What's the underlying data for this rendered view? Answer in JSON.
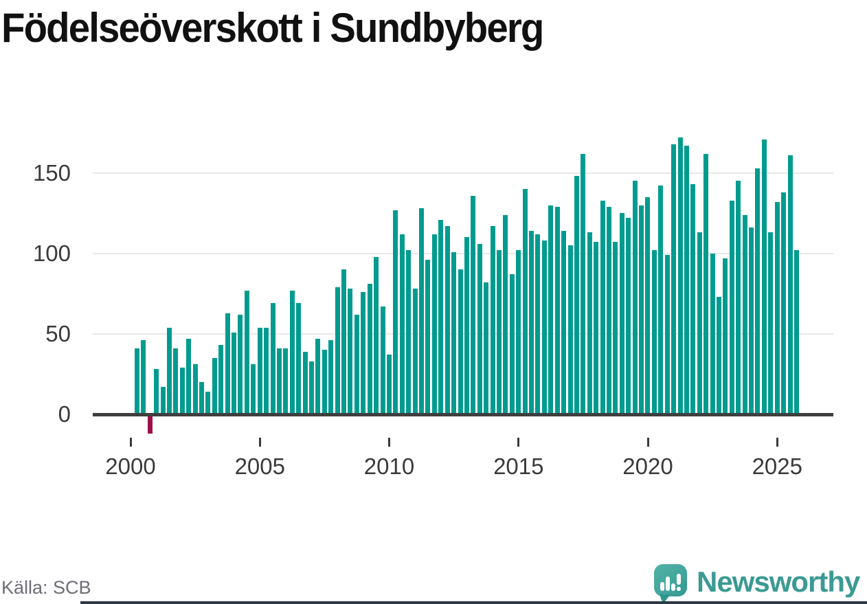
{
  "title": "Födelseöverskott i Sundbyberg",
  "source": "Källa: SCB",
  "branding": {
    "name": "Newsworthy",
    "logo_icon": "speech-bubble-bar-chart-icon",
    "wordmark_color": "#3b9a93",
    "bubble_color": "#43a79e"
  },
  "colors": {
    "positive_bar": "#009b8f",
    "negative_bar": "#9e104b",
    "axis_line": "#3f3f3f",
    "gridline": "#e8e8e8",
    "tick_label": "#3a3a3a",
    "source_text": "#6d6d75",
    "bottom_bar": "#2e3a48"
  },
  "chart_data": {
    "type": "bar",
    "title": "Födelseöverskott i Sundbyberg",
    "xlabel": "",
    "ylabel": "",
    "x_ticks": [
      "2000",
      "2005",
      "2010",
      "2015",
      "2020",
      "2025"
    ],
    "y_ticks": [
      0,
      50,
      100,
      150
    ],
    "ylim": [
      -15,
      176
    ],
    "grid": "horizontal",
    "legend": "none",
    "categories": [
      "2000Q2",
      "2000Q3",
      "2000Q4",
      "2001Q1",
      "2001Q2",
      "2001Q3",
      "2001Q4",
      "2002Q1",
      "2002Q2",
      "2002Q3",
      "2002Q4",
      "2003Q1",
      "2003Q2",
      "2003Q3",
      "2003Q4",
      "2004Q1",
      "2004Q2",
      "2004Q3",
      "2004Q4",
      "2005Q1",
      "2005Q2",
      "2005Q3",
      "2005Q4",
      "2006Q1",
      "2006Q2",
      "2006Q3",
      "2006Q4",
      "2007Q1",
      "2007Q2",
      "2007Q3",
      "2007Q4",
      "2008Q1",
      "2008Q2",
      "2008Q3",
      "2008Q4",
      "2009Q1",
      "2009Q2",
      "2009Q3",
      "2009Q4",
      "2010Q1",
      "2010Q2",
      "2010Q3",
      "2010Q4",
      "2011Q1",
      "2011Q2",
      "2011Q3",
      "2011Q4",
      "2012Q1",
      "2012Q2",
      "2012Q3",
      "2012Q4",
      "2013Q1",
      "2013Q2",
      "2013Q3",
      "2013Q4",
      "2014Q1",
      "2014Q2",
      "2014Q3",
      "2014Q4",
      "2015Q1",
      "2015Q2",
      "2015Q3",
      "2015Q4",
      "2016Q1",
      "2016Q2",
      "2016Q3",
      "2016Q4",
      "2017Q1",
      "2017Q2",
      "2017Q3",
      "2017Q4",
      "2018Q1",
      "2018Q2",
      "2018Q3",
      "2018Q4",
      "2019Q1",
      "2019Q2",
      "2019Q3",
      "2019Q4",
      "2020Q1",
      "2020Q2",
      "2020Q3",
      "2020Q4",
      "2021Q1",
      "2021Q2",
      "2021Q3",
      "2021Q4",
      "2022Q1",
      "2022Q2",
      "2022Q3",
      "2022Q4",
      "2023Q1",
      "2023Q2",
      "2023Q3",
      "2023Q4",
      "2024Q1",
      "2024Q2",
      "2024Q3",
      "2024Q4",
      "2025Q1",
      "2025Q2",
      "2025Q3",
      "2025Q4"
    ],
    "values": [
      41,
      46,
      -12,
      28,
      17,
      54,
      41,
      29,
      47,
      31,
      20,
      14,
      35,
      43,
      63,
      51,
      62,
      77,
      31,
      54,
      54,
      69,
      41,
      41,
      77,
      69,
      39,
      33,
      47,
      40,
      46,
      79,
      90,
      78,
      62,
      76,
      81,
      98,
      67,
      37,
      127,
      112,
      102,
      78,
      128,
      96,
      112,
      121,
      117,
      101,
      90,
      110,
      136,
      106,
      82,
      117,
      102,
      124,
      87,
      102,
      140,
      114,
      112,
      108,
      130,
      129,
      114,
      105,
      148,
      162,
      113,
      107,
      133,
      129,
      107,
      125,
      122,
      145,
      130,
      135,
      102,
      142,
      99,
      168,
      172,
      167,
      143,
      113,
      162,
      100,
      73,
      97,
      133,
      145,
      124,
      116,
      153,
      171,
      113,
      132,
      138,
      161,
      102
    ]
  }
}
